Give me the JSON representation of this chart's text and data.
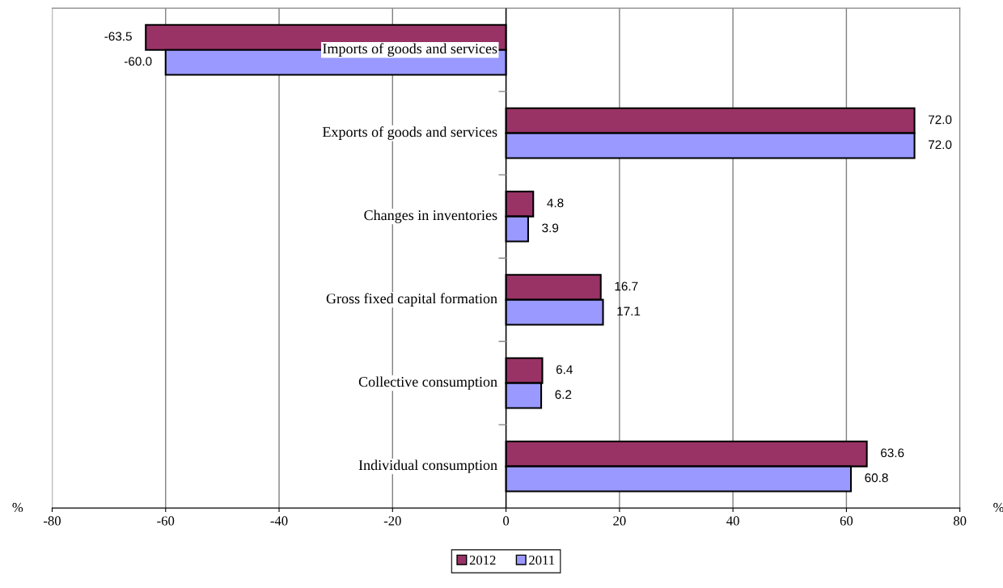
{
  "chart_data": {
    "type": "bar",
    "orientation": "horizontal",
    "categories": [
      "Imports of goods and services",
      "Exports of goods and services",
      "Changes in inventories",
      "Gross fixed capital formation",
      "Collective consumption",
      "Individual consumption"
    ],
    "series": [
      {
        "name": "2012",
        "color": "#993366",
        "values": [
          -63.5,
          72.0,
          4.8,
          16.7,
          6.4,
          63.6
        ],
        "value_labels": [
          "-63.5",
          "72.0",
          "4.8",
          "16.7",
          "6.4",
          "63.6"
        ]
      },
      {
        "name": "2011",
        "color": "#9999ff",
        "values": [
          -60.0,
          72.0,
          3.9,
          17.1,
          6.2,
          60.8
        ],
        "value_labels": [
          "-60.0",
          "72.0",
          "3.9",
          "17.1",
          "6.2",
          "60.8"
        ]
      }
    ],
    "xlim": [
      -80,
      80
    ],
    "xticks": [
      -80,
      -60,
      -40,
      -20,
      0,
      20,
      40,
      60,
      80
    ],
    "grid": "x",
    "legend": "bottom",
    "annotations": [
      "%",
      "%"
    ]
  }
}
